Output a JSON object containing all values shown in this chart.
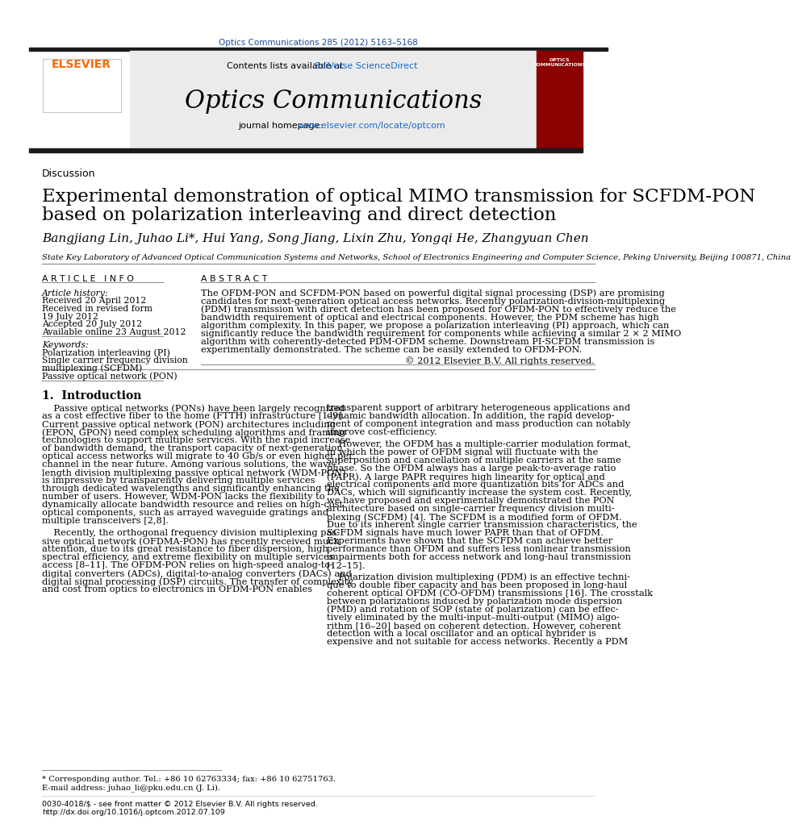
{
  "journal_line": "Optics Communications 285 (2012) 5163–5168",
  "contents_line": "Contents lists available at ",
  "sciverse_text": "SciVerse ScienceDirect",
  "journal_title": "Optics Communications",
  "homepage_prefix": "journal homepage: ",
  "homepage_url": "www.elsevier.com/locate/optcom",
  "section_label": "Discussion",
  "paper_title_line1": "Experimental demonstration of optical MIMO transmission for SCFDM-PON",
  "paper_title_line2": "based on polarization interleaving and direct detection",
  "authors": "Bangjiang Lin, Juhao Li*, Hui Yang, Song Jiang, Lixin Zhu, Yongqi He, Zhangyuan Chen",
  "affiliation": "State Key Laboratory of Advanced Optical Communication Systems and Networks, School of Electronics Engineering and Computer Science, Peking University, Beijing 100871, China",
  "article_info_header": "A R T I C L E   I N F O",
  "article_history_label": "Article history:",
  "received1": "Received 20 April 2012",
  "received2": "Received in revised form",
  "received2b": "19 July 2012",
  "accepted": "Accepted 20 July 2012",
  "available": "Available online 23 August 2012",
  "keywords_label": "Keywords:",
  "keyword1": "Polarization interleaving (PI)",
  "keyword2": "Single carrier frequency division",
  "keyword3": "multiplexing (SCFDM)",
  "keyword4": "Passive optical network (PON)",
  "abstract_header": "A B S T R A C T",
  "abstract_text": "The OFDM-PON and SCFDM-PON based on powerful digital signal processing (DSP) are promising\ncandidates for next-generation optical access networks. Recently polarization-division-multiplexing\n(PDM) transmission with direct detection has been proposed for OFDM-PON to effectively reduce the\nbandwidth requirement of optical and electrical components. However, the PDM scheme has high\nalgorithm complexity. In this paper, we propose a polarization interleaving (PI) approach, which can\nsignificantly reduce the bandwidth requirement for components while achieving a similar 2 × 2 MIMO\nalgorithm with coherently-detected PDM-OFDM scheme. Downstream PI-SCFDM transmission is\nexperimentally demonstrated. The scheme can be easily extended to OFDM-PON.",
  "copyright": "© 2012 Elsevier B.V. All rights reserved.",
  "intro_header": "1.  Introduction",
  "intro_col1_para1": "    Passive optical networks (PONs) have been largely recognized\nas a cost effective fiber to the home (FTTH) infrastructure [1–9].\nCurrent passive optical network (PON) architectures including\n(EPON, GPON) need complex scheduling algorithms and framing\ntechnologies to support multiple services. With the rapid increase\nof bandwidth demand, the transport capacity of next-generation\noptical access networks will migrate to 40 Gb/s or even higher per\nchannel in the near future. Among various solutions, the wave-\nlength division multiplexing passive optical network (WDM-PON)\nis impressive by transparently delivering multiple services\nthrough dedicated wavelengths and significantly enhancing the\nnumber of users. However, WDM-PON lacks the flexibility to\ndynamically allocate bandwidth resource and relies on high-cost\noptical components, such as arrayed waveguide gratings and\nmultiple transceivers [2,8].",
  "intro_col1_para2": "    Recently, the orthogonal frequency division multiplexing pas-\nsive optical network (OFDMA-PON) has recently received much\nattention, due to its great resistance to fiber dispersion, high\nspectral efficiency, and extreme flexibility on multiple services\naccess [8–11]. The OFDM-PON relies on high-speed analog-to-\ndigital converters (ADCs), digital-to-analog converters (DACs) and\ndigital signal processing (DSP) circuits. The transfer of complexity\nand cost from optics to electronics in OFDM-PON enables",
  "intro_col2_para1": "transparent support of arbitrary heterogeneous applications and\ndynamic bandwidth allocation. In addition, the rapid develop-\nment of component integration and mass production can notably\nimprove cost-efficiency.",
  "intro_col2_para2": "    However, the OFDM has a multiple-carrier modulation format,\nin which the power of OFDM signal will fluctuate with the\nsuperposition and cancellation of multiple carriers at the same\nphase. So the OFDM always has a large peak-to-average ratio\n(PAPR). A large PAPR requires high linearity for optical and\nelectrical components and more quantization bits for ADCs and\nDACs, which will significantly increase the system cost. Recently,\nwe have proposed and experimentally demonstrated the PON\narchitecture based on single-carrier frequency division multi-\nplexing (SCFDM) [4]. The SCFDM is a modified form of OFDM.\nDue to its inherent single carrier transmission characteristics, the\nSCFDM signals have much lower PAPR than that of OFDM.\nExperiments have shown that the SCFDM can achieve better\nperformance than OFDM and suffers less nonlinear transmission\nimpairments both for access network and long-haul transmission\n[12–15].",
  "intro_col2_para3": "    Polarization division multiplexing (PDM) is an effective techni-\nque to double fiber capacity and has been proposed in long-haul\ncoherent optical OFDM (CO-OFDM) transmissions [16]. The crosstalk\nbetween polarizations induced by polarization mode dispersion\n(PMD) and rotation of SOP (state of polarization) can be effec-\ntively eliminated by the multi-input–multi-output (MIMO) algo-\nrithm [16–20] based on coherent detection. However, coherent\ndetection with a local oscillator and an optical hybrider is\nexpensive and not suitable for access networks. Recently a PDM",
  "footnote_star": "* Corresponding author. Tel.: +86 10 62763334; fax: +86 10 62751763.",
  "footnote_email": "E-mail address: juhao_li@pku.edu.cn (J. Li).",
  "footer1": "0030-4018/$ - see front matter © 2012 Elsevier B.V. All rights reserved.",
  "footer2": "http://dx.doi.org/10.1016/j.optcom.2012.07.109",
  "bg_color": "#ffffff",
  "header_bg": "#e8e8e8",
  "journal_color": "#1a4b9c",
  "url_color": "#1a6bcc",
  "thick_bar_color": "#1a1a1a",
  "separator_color": "#888888",
  "elsevier_orange": "#ff6600",
  "red_cover_color": "#8b0000",
  "text_color": "#000000",
  "light_text": "#222222"
}
